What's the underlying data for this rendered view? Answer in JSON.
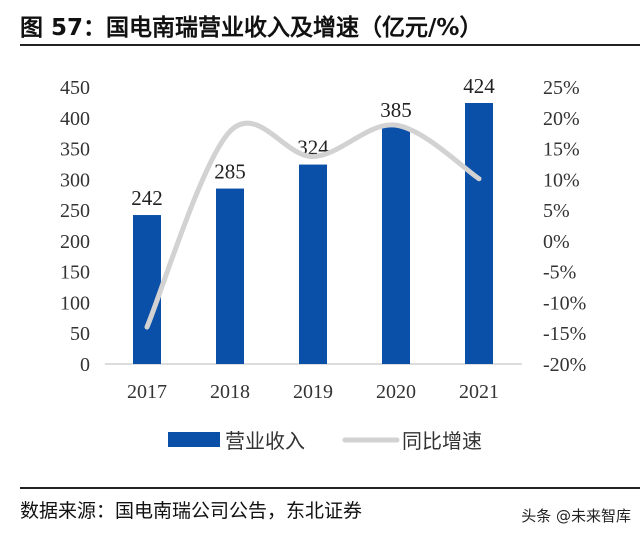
{
  "title": "图 57：国电南瑞营业收入及增速（亿元/%）",
  "source": "数据来源：国电南瑞公司公告，东北证券",
  "watermark": "头条 @未来智库",
  "chart_data": {
    "type": "bar+line",
    "categories": [
      "2017",
      "2018",
      "2019",
      "2020",
      "2021"
    ],
    "series": [
      {
        "name": "营业收入",
        "type": "bar",
        "axis": "left",
        "values": [
          242,
          285,
          324,
          385,
          424
        ],
        "data_labels": [
          "242",
          "285",
          "324",
          "385",
          "424"
        ],
        "color": "#0b50a8"
      },
      {
        "name": "同比增速",
        "type": "line",
        "axis": "right",
        "smooth": true,
        "values": [
          -14,
          17.8,
          13.7,
          18.8,
          10.1
        ],
        "color": "#d2d2d2"
      }
    ],
    "y_left": {
      "range": [
        0,
        450
      ],
      "ticks": [
        "0",
        "50",
        "100",
        "150",
        "200",
        "250",
        "300",
        "350",
        "400",
        "450"
      ]
    },
    "y_right": {
      "range": [
        -20,
        25
      ],
      "ticks": [
        "-20%",
        "-15%",
        "-10%",
        "-5%",
        "0%",
        "5%",
        "10%",
        "15%",
        "20%",
        "25%"
      ]
    },
    "grid": false,
    "legend": "bottom"
  }
}
